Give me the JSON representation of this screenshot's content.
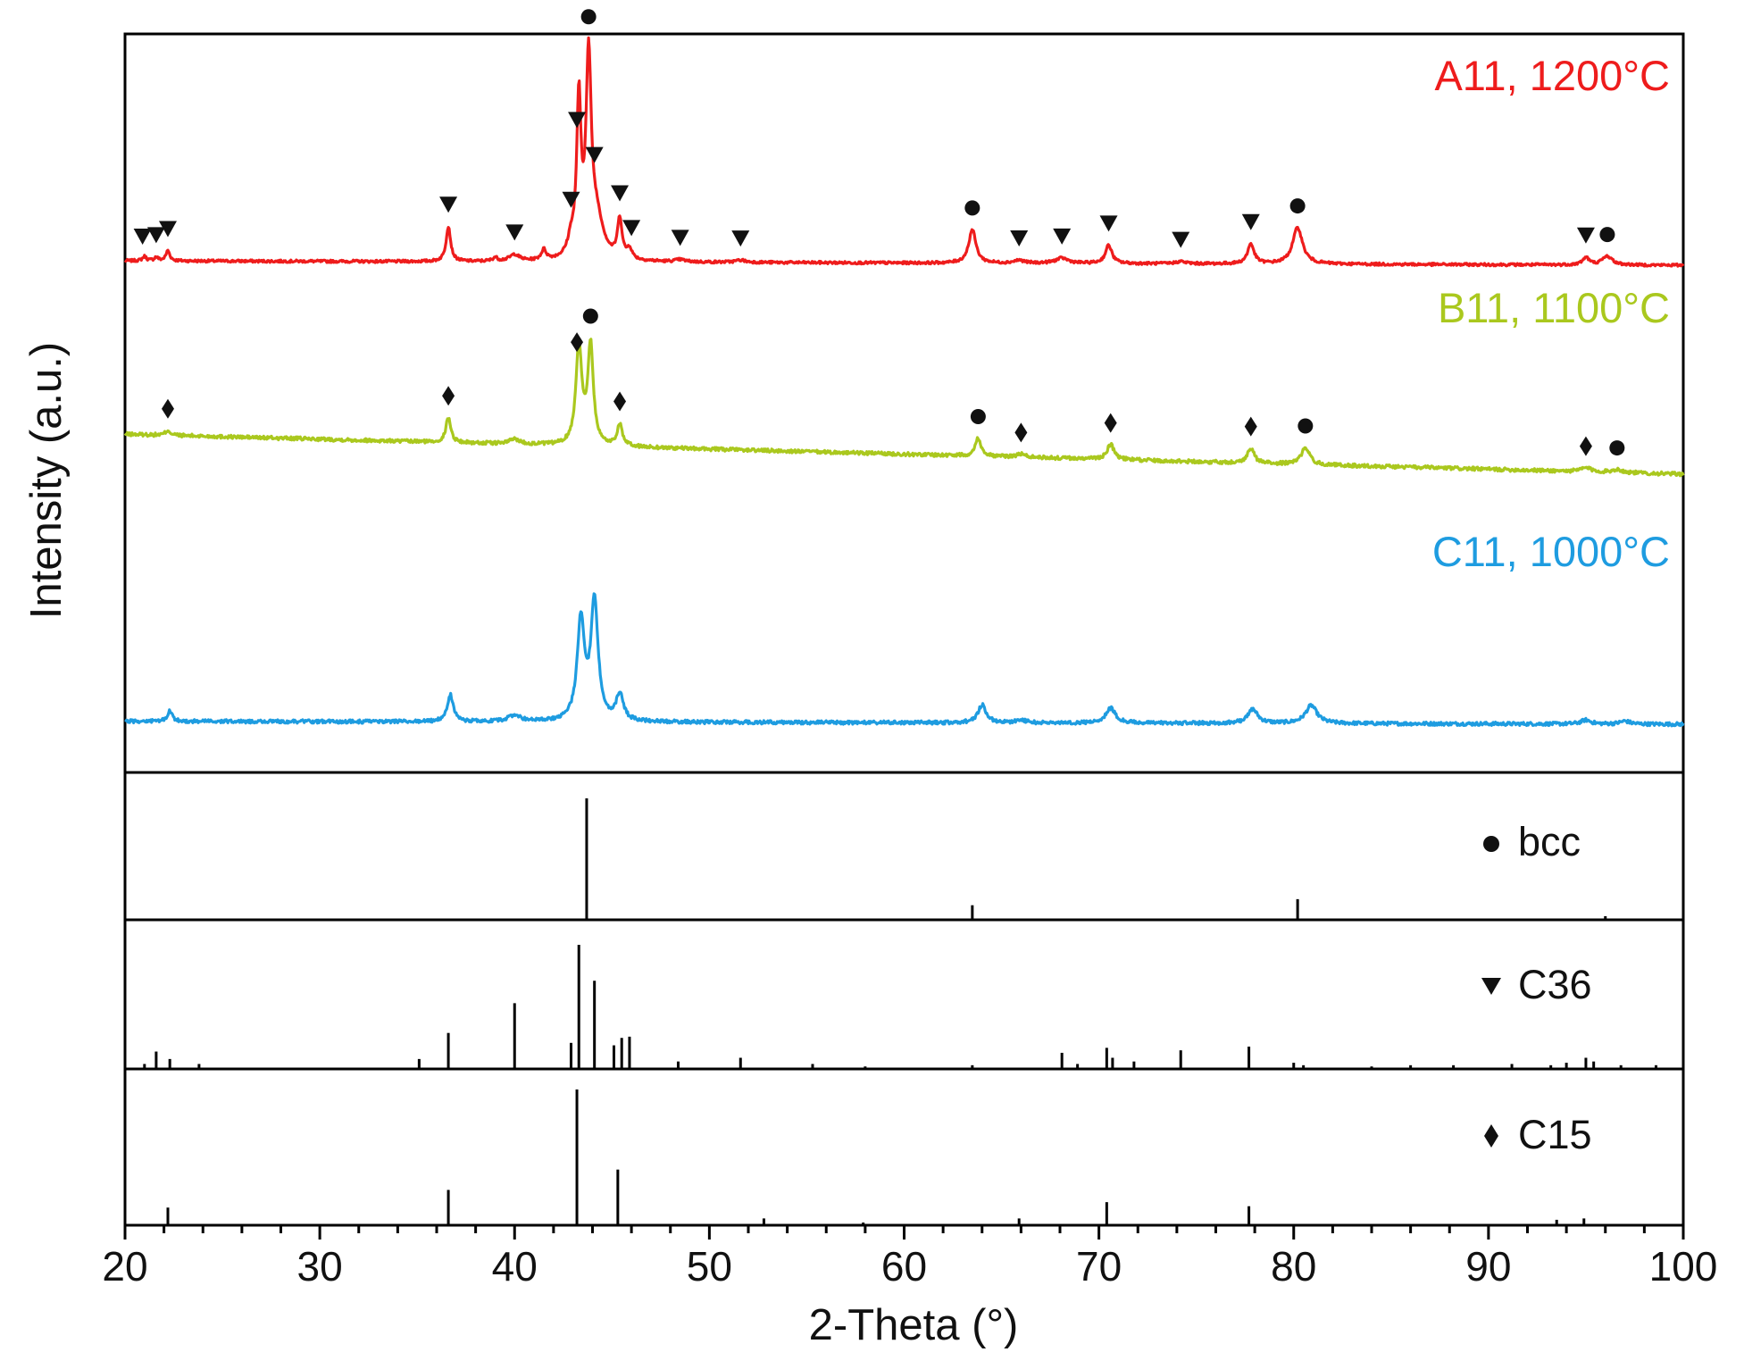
{
  "chart_data": {
    "type": "line",
    "xlabel": "2-Theta (°)",
    "ylabel": "Intensity (a.u.)",
    "xlim": [
      20,
      100
    ],
    "x_ticks": [
      20,
      30,
      40,
      50,
      60,
      70,
      80,
      90,
      100
    ],
    "grid": false,
    "legend": "none",
    "colors": {
      "A11": "#ee1c1c",
      "B11": "#aac81e",
      "C11": "#1e9ce0",
      "axis": "#000000"
    },
    "samples": [
      {
        "id": "A11",
        "label": "A11, 1200°C",
        "color": "#ee1c1c",
        "baseline_start": 0.06,
        "baseline_end": 0.0,
        "peaks": [
          {
            "x": 21.0,
            "h": 0.06,
            "w": 0.12
          },
          {
            "x": 21.6,
            "h": 0.05,
            "w": 0.12
          },
          {
            "x": 22.2,
            "h": 0.14,
            "w": 0.12
          },
          {
            "x": 36.6,
            "h": 0.48,
            "w": 0.14
          },
          {
            "x": 39.0,
            "h": 0.05,
            "w": 0.15
          },
          {
            "x": 40.0,
            "h": 0.09,
            "w": 0.3
          },
          {
            "x": 41.5,
            "h": 0.14,
            "w": 0.15
          },
          {
            "x": 42.9,
            "h": 0.22,
            "w": 0.2
          },
          {
            "x": 43.3,
            "h": 2.1,
            "w": 0.13
          },
          {
            "x": 43.8,
            "h": 2.62,
            "w": 0.16
          },
          {
            "x": 44.2,
            "h": 0.55,
            "w": 0.42
          },
          {
            "x": 45.4,
            "h": 0.54,
            "w": 0.14
          },
          {
            "x": 45.9,
            "h": 0.14,
            "w": 0.15
          },
          {
            "x": 48.5,
            "h": 0.03,
            "w": 0.3
          },
          {
            "x": 51.6,
            "h": 0.03,
            "w": 0.3
          },
          {
            "x": 63.5,
            "h": 0.46,
            "w": 0.22
          },
          {
            "x": 65.9,
            "h": 0.04,
            "w": 0.3
          },
          {
            "x": 68.1,
            "h": 0.07,
            "w": 0.4
          },
          {
            "x": 70.5,
            "h": 0.25,
            "w": 0.2
          },
          {
            "x": 74.2,
            "h": 0.03,
            "w": 0.3
          },
          {
            "x": 77.8,
            "h": 0.27,
            "w": 0.2
          },
          {
            "x": 80.2,
            "h": 0.5,
            "w": 0.3
          },
          {
            "x": 95.0,
            "h": 0.1,
            "w": 0.2
          },
          {
            "x": 96.1,
            "h": 0.12,
            "w": 0.3
          }
        ],
        "markers": [
          {
            "x": 20.9,
            "symbol": "triangle"
          },
          {
            "x": 21.6,
            "symbol": "triangle"
          },
          {
            "x": 22.2,
            "symbol": "triangle"
          },
          {
            "x": 36.6,
            "symbol": "triangle"
          },
          {
            "x": 40.0,
            "symbol": "triangle"
          },
          {
            "x": 42.9,
            "symbol": "triangle"
          },
          {
            "x": 43.2,
            "symbol": "triangle"
          },
          {
            "x": 43.8,
            "symbol": "circle"
          },
          {
            "x": 44.1,
            "symbol": "triangle"
          },
          {
            "x": 45.4,
            "symbol": "triangle"
          },
          {
            "x": 46.0,
            "symbol": "triangle"
          },
          {
            "x": 48.5,
            "symbol": "triangle"
          },
          {
            "x": 51.6,
            "symbol": "triangle"
          },
          {
            "x": 63.5,
            "symbol": "circle"
          },
          {
            "x": 65.9,
            "symbol": "triangle"
          },
          {
            "x": 68.1,
            "symbol": "triangle"
          },
          {
            "x": 70.5,
            "symbol": "triangle"
          },
          {
            "x": 74.2,
            "symbol": "triangle"
          },
          {
            "x": 77.8,
            "symbol": "triangle"
          },
          {
            "x": 80.2,
            "symbol": "circle"
          },
          {
            "x": 95.0,
            "symbol": "triangle"
          },
          {
            "x": 96.1,
            "symbol": "circle"
          }
        ]
      },
      {
        "id": "B11",
        "label": "B11, 1100°C",
        "color": "#aac81e",
        "baseline_start": 0.4,
        "baseline_end": 0.0,
        "peaks": [
          {
            "x": 22.2,
            "h": 0.05,
            "w": 0.15
          },
          {
            "x": 36.6,
            "h": 0.25,
            "w": 0.15
          },
          {
            "x": 40.0,
            "h": 0.05,
            "w": 0.3
          },
          {
            "x": 43.3,
            "h": 1.0,
            "w": 0.18
          },
          {
            "x": 43.9,
            "h": 1.0,
            "w": 0.17
          },
          {
            "x": 45.4,
            "h": 0.22,
            "w": 0.16
          },
          {
            "x": 63.8,
            "h": 0.18,
            "w": 0.18
          },
          {
            "x": 66.0,
            "h": 0.03,
            "w": 0.3
          },
          {
            "x": 70.6,
            "h": 0.15,
            "w": 0.22
          },
          {
            "x": 77.8,
            "h": 0.15,
            "w": 0.2
          },
          {
            "x": 80.6,
            "h": 0.17,
            "w": 0.25
          },
          {
            "x": 95.0,
            "h": 0.04,
            "w": 0.3
          },
          {
            "x": 96.6,
            "h": 0.03,
            "w": 0.3
          }
        ],
        "markers": [
          {
            "x": 22.2,
            "symbol": "diamond"
          },
          {
            "x": 36.6,
            "symbol": "diamond"
          },
          {
            "x": 43.2,
            "symbol": "diamond"
          },
          {
            "x": 43.9,
            "symbol": "circle"
          },
          {
            "x": 45.4,
            "symbol": "diamond"
          },
          {
            "x": 63.8,
            "symbol": "circle"
          },
          {
            "x": 66.0,
            "symbol": "diamond"
          },
          {
            "x": 70.6,
            "symbol": "diamond"
          },
          {
            "x": 77.8,
            "symbol": "diamond"
          },
          {
            "x": 80.6,
            "symbol": "circle"
          },
          {
            "x": 95.0,
            "symbol": "diamond"
          },
          {
            "x": 96.6,
            "symbol": "circle"
          }
        ]
      },
      {
        "id": "C11",
        "label": "C11, 1000°C",
        "color": "#1e9ce0",
        "baseline_start": 0.03,
        "baseline_end": 0.0,
        "peaks": [
          {
            "x": 22.3,
            "h": 0.1,
            "w": 0.15
          },
          {
            "x": 36.7,
            "h": 0.27,
            "w": 0.18
          },
          {
            "x": 40.0,
            "h": 0.06,
            "w": 0.4
          },
          {
            "x": 43.4,
            "h": 1.0,
            "w": 0.22
          },
          {
            "x": 44.1,
            "h": 1.2,
            "w": 0.22
          },
          {
            "x": 45.4,
            "h": 0.26,
            "w": 0.22
          },
          {
            "x": 64.0,
            "h": 0.18,
            "w": 0.25
          },
          {
            "x": 66.0,
            "h": 0.03,
            "w": 0.3
          },
          {
            "x": 70.6,
            "h": 0.15,
            "w": 0.3
          },
          {
            "x": 77.9,
            "h": 0.14,
            "w": 0.3
          },
          {
            "x": 80.9,
            "h": 0.18,
            "w": 0.35
          },
          {
            "x": 95.0,
            "h": 0.04,
            "w": 0.3
          },
          {
            "x": 97.0,
            "h": 0.03,
            "w": 0.3
          }
        ],
        "markers": []
      }
    ],
    "reference_patterns": [
      {
        "id": "bcc",
        "label": "bcc",
        "symbol": "circle",
        "lines": [
          {
            "x": 43.7,
            "i": 100
          },
          {
            "x": 63.5,
            "i": 12
          },
          {
            "x": 80.2,
            "i": 17
          },
          {
            "x": 96.0,
            "i": 3
          }
        ]
      },
      {
        "id": "C36",
        "label": "C36",
        "symbol": "triangle",
        "lines": [
          {
            "x": 21.0,
            "i": 4
          },
          {
            "x": 21.6,
            "i": 14
          },
          {
            "x": 22.3,
            "i": 8
          },
          {
            "x": 23.8,
            "i": 4
          },
          {
            "x": 35.1,
            "i": 8
          },
          {
            "x": 36.6,
            "i": 29
          },
          {
            "x": 40.0,
            "i": 53
          },
          {
            "x": 42.9,
            "i": 21
          },
          {
            "x": 43.3,
            "i": 100
          },
          {
            "x": 44.1,
            "i": 71
          },
          {
            "x": 45.1,
            "i": 19
          },
          {
            "x": 45.5,
            "i": 25
          },
          {
            "x": 45.9,
            "i": 26
          },
          {
            "x": 48.4,
            "i": 6
          },
          {
            "x": 51.6,
            "i": 9
          },
          {
            "x": 55.3,
            "i": 4
          },
          {
            "x": 58.0,
            "i": 2
          },
          {
            "x": 63.5,
            "i": 3
          },
          {
            "x": 68.1,
            "i": 13
          },
          {
            "x": 68.9,
            "i": 4
          },
          {
            "x": 70.4,
            "i": 17
          },
          {
            "x": 70.7,
            "i": 9
          },
          {
            "x": 71.8,
            "i": 6
          },
          {
            "x": 74.2,
            "i": 15
          },
          {
            "x": 77.7,
            "i": 18
          },
          {
            "x": 80.0,
            "i": 5
          },
          {
            "x": 80.5,
            "i": 3
          },
          {
            "x": 84.0,
            "i": 2
          },
          {
            "x": 86.0,
            "i": 3
          },
          {
            "x": 88.2,
            "i": 3
          },
          {
            "x": 91.2,
            "i": 4
          },
          {
            "x": 93.2,
            "i": 3
          },
          {
            "x": 94.0,
            "i": 5
          },
          {
            "x": 95.0,
            "i": 9
          },
          {
            "x": 95.4,
            "i": 6
          },
          {
            "x": 96.8,
            "i": 3
          },
          {
            "x": 98.6,
            "i": 3
          }
        ]
      },
      {
        "id": "C15",
        "label": "C15",
        "symbol": "diamond",
        "lines": [
          {
            "x": 22.2,
            "i": 13
          },
          {
            "x": 36.6,
            "i": 26
          },
          {
            "x": 43.2,
            "i": 100
          },
          {
            "x": 45.3,
            "i": 41
          },
          {
            "x": 52.8,
            "i": 5
          },
          {
            "x": 57.9,
            "i": 2
          },
          {
            "x": 65.9,
            "i": 5
          },
          {
            "x": 70.4,
            "i": 17
          },
          {
            "x": 77.7,
            "i": 14
          },
          {
            "x": 93.5,
            "i": 4
          },
          {
            "x": 94.9,
            "i": 5
          }
        ]
      }
    ]
  }
}
